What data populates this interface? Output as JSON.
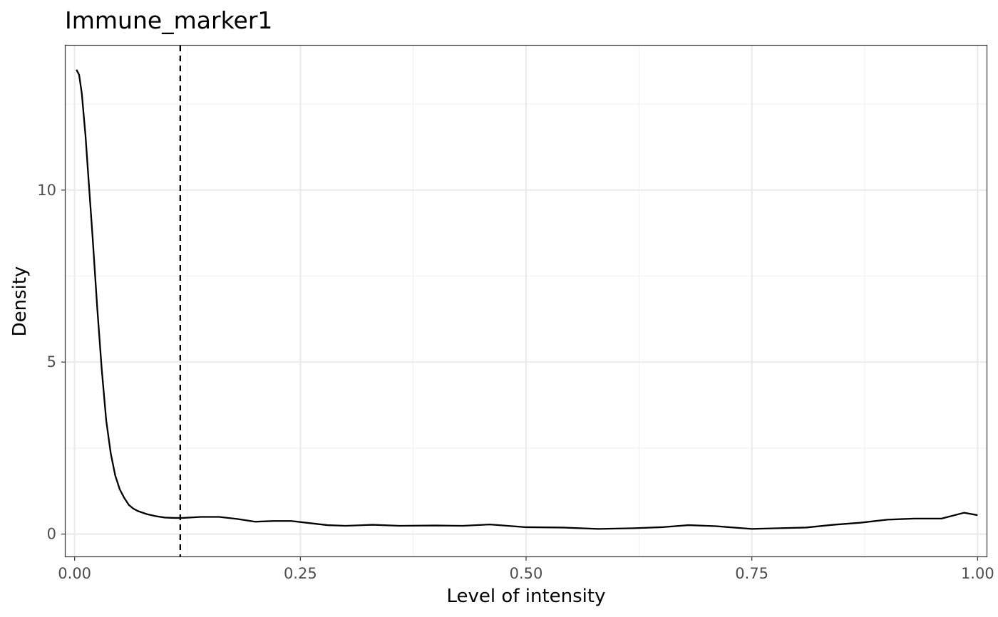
{
  "chart_data": {
    "type": "line",
    "title": "Immune_marker1",
    "xlabel": "Level of intensity",
    "ylabel": "Density",
    "xlim": [
      -0.01,
      1.01
    ],
    "ylim": [
      -0.65,
      14.2
    ],
    "x_ticks": [
      0.0,
      0.25,
      0.5,
      0.75,
      1.0
    ],
    "x_tick_labels": [
      "0.00",
      "0.25",
      "0.50",
      "0.75",
      "1.00"
    ],
    "y_ticks": [
      0,
      5,
      10
    ],
    "y_tick_labels": [
      "0",
      "5",
      "10"
    ],
    "x_minor_ticks": [
      0.125,
      0.375,
      0.625,
      0.875
    ],
    "y_minor_ticks": [
      2.5,
      7.5,
      12.5
    ],
    "grid": true,
    "theme": "bw",
    "series": [
      {
        "color": "#000000",
        "x": [
          0.002,
          0.005,
          0.008,
          0.012,
          0.016,
          0.02,
          0.025,
          0.03,
          0.035,
          0.04,
          0.045,
          0.05,
          0.055,
          0.06,
          0.065,
          0.07,
          0.08,
          0.09,
          0.1,
          0.11,
          0.12,
          0.14,
          0.16,
          0.18,
          0.2,
          0.22,
          0.24,
          0.26,
          0.28,
          0.3,
          0.33,
          0.36,
          0.4,
          0.43,
          0.46,
          0.5,
          0.54,
          0.58,
          0.62,
          0.65,
          0.68,
          0.71,
          0.75,
          0.78,
          0.81,
          0.84,
          0.87,
          0.9,
          0.93,
          0.96,
          0.985,
          1.0
        ],
        "y": [
          13.5,
          13.35,
          12.8,
          11.6,
          10.1,
          8.6,
          6.6,
          4.8,
          3.3,
          2.35,
          1.7,
          1.3,
          1.05,
          0.85,
          0.74,
          0.67,
          0.58,
          0.52,
          0.48,
          0.47,
          0.47,
          0.5,
          0.5,
          0.44,
          0.36,
          0.38,
          0.38,
          0.32,
          0.26,
          0.24,
          0.27,
          0.24,
          0.25,
          0.24,
          0.28,
          0.2,
          0.19,
          0.15,
          0.17,
          0.2,
          0.26,
          0.23,
          0.15,
          0.17,
          0.19,
          0.27,
          0.33,
          0.42,
          0.45,
          0.45,
          0.62,
          0.55
        ]
      }
    ],
    "vline": {
      "x": 0.117,
      "style": "dashed",
      "color": "#000000"
    }
  }
}
